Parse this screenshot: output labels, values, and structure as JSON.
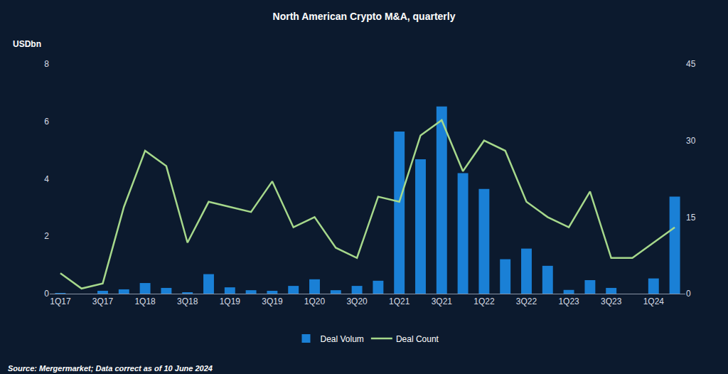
{
  "chart_data": {
    "type": "bar",
    "title": "North American Crypto M&A, quarterly",
    "y_label": "USDbn",
    "annotations": [
      "Source: Mergermarket; Data correct as of 10 June 2024"
    ],
    "categories": [
      "1Q17",
      null,
      "3Q17",
      null,
      "1Q18",
      null,
      "3Q18",
      null,
      "1Q19",
      null,
      "3Q19",
      null,
      "1Q20",
      null,
      "3Q20",
      null,
      "1Q21",
      null,
      "3Q21",
      null,
      "1Q22",
      null,
      "3Q22",
      null,
      "1Q23",
      null,
      "3Q23",
      null,
      "1Q24",
      null
    ],
    "series": [
      {
        "name": "Deal Volum",
        "type": "bar",
        "color": "#1a80d6",
        "values": [
          0.02,
          0,
          0.1,
          0.15,
          0.37,
          0.2,
          0.05,
          0.68,
          0.22,
          0.12,
          0.1,
          0.27,
          0.5,
          0.12,
          0.27,
          0.45,
          5.65,
          4.68,
          6.52,
          4.2,
          3.65,
          1.2,
          1.57,
          0.97,
          0.13,
          0.47,
          0.2,
          0,
          0.53,
          3.38
        ]
      },
      {
        "name": "Deal Count",
        "type": "line",
        "axis": "y2",
        "color": "#a6d88b",
        "values": [
          4,
          1,
          2,
          17,
          28,
          25,
          10,
          18,
          17,
          16,
          22,
          13,
          15,
          9,
          7,
          19,
          18,
          31,
          34,
          24,
          30,
          28,
          18,
          15,
          13,
          20,
          7,
          7,
          10,
          13
        ]
      }
    ],
    "ylim": [
      0,
      8
    ],
    "yticks": [
      0,
      2,
      4,
      6,
      8
    ],
    "y2lim": [
      0,
      45
    ],
    "y2ticks": [
      0,
      15,
      30,
      45
    ],
    "grid": false,
    "legend": "bottom"
  }
}
